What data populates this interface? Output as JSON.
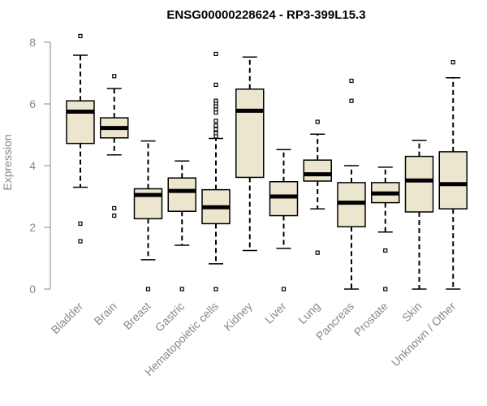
{
  "chart_data": {
    "type": "boxplot",
    "title": "ENSG00000228624 - RP3-399L15.3",
    "xlabel": "",
    "ylabel": "Expression",
    "ylim": [
      0,
      8
    ],
    "yticks": [
      0,
      2,
      4,
      6,
      8
    ],
    "box_fill": "#ede6cf",
    "stroke_color": "#000000",
    "axis_color": "#888888",
    "categories": [
      "Bladder",
      "Brain",
      "Breast",
      "Gastric",
      "Hematopoietic cells",
      "Kidney",
      "Liver",
      "Lung",
      "Pancreas",
      "Prostate",
      "Skin",
      "Unknown / Other"
    ],
    "boxes": [
      {
        "name": "Bladder",
        "whisker_low": 3.3,
        "q1": 4.72,
        "median": 5.75,
        "q3": 6.1,
        "whisker_high": 7.58,
        "outliers": [
          8.2,
          2.12,
          1.55
        ]
      },
      {
        "name": "Brain",
        "whisker_low": 4.35,
        "q1": 4.9,
        "median": 5.22,
        "q3": 5.55,
        "whisker_high": 6.5,
        "outliers": [
          6.9,
          2.62,
          2.38
        ]
      },
      {
        "name": "Breast",
        "whisker_low": 0.95,
        "q1": 2.28,
        "median": 3.05,
        "q3": 3.25,
        "whisker_high": 4.8,
        "outliers": [
          0.0
        ]
      },
      {
        "name": "Gastric",
        "whisker_low": 1.42,
        "q1": 2.52,
        "median": 3.18,
        "q3": 3.6,
        "whisker_high": 4.15,
        "outliers": [
          0.0
        ]
      },
      {
        "name": "Hematopoietic cells",
        "whisker_low": 0.82,
        "q1": 2.12,
        "median": 2.65,
        "q3": 3.22,
        "whisker_high": 4.88,
        "outliers": [
          7.62,
          6.62,
          6.1,
          6.0,
          5.92,
          5.82,
          5.72,
          5.45,
          5.3,
          5.18,
          5.05,
          4.95,
          0.0
        ]
      },
      {
        "name": "Kidney",
        "whisker_low": 1.25,
        "q1": 3.62,
        "median": 5.78,
        "q3": 6.48,
        "whisker_high": 7.52,
        "outliers": []
      },
      {
        "name": "Liver",
        "whisker_low": 1.32,
        "q1": 2.38,
        "median": 3.0,
        "q3": 3.48,
        "whisker_high": 4.52,
        "outliers": [
          0.0
        ]
      },
      {
        "name": "Lung",
        "whisker_low": 2.6,
        "q1": 3.5,
        "median": 3.72,
        "q3": 4.18,
        "whisker_high": 5.02,
        "outliers": [
          5.42,
          1.18
        ]
      },
      {
        "name": "Pancreas",
        "whisker_low": 0.0,
        "q1": 2.02,
        "median": 2.8,
        "q3": 3.45,
        "whisker_high": 4.0,
        "outliers": [
          6.75,
          6.1
        ]
      },
      {
        "name": "Prostate",
        "whisker_low": 1.85,
        "q1": 2.8,
        "median": 3.1,
        "q3": 3.45,
        "whisker_high": 3.95,
        "outliers": [
          1.25,
          0.0
        ]
      },
      {
        "name": "Skin",
        "whisker_low": 0.0,
        "q1": 2.5,
        "median": 3.52,
        "q3": 4.3,
        "whisker_high": 4.82,
        "outliers": []
      },
      {
        "name": "Unknown / Other",
        "whisker_low": 0.0,
        "q1": 2.6,
        "median": 3.4,
        "q3": 4.45,
        "whisker_high": 6.85,
        "outliers": [
          7.35
        ]
      }
    ]
  }
}
